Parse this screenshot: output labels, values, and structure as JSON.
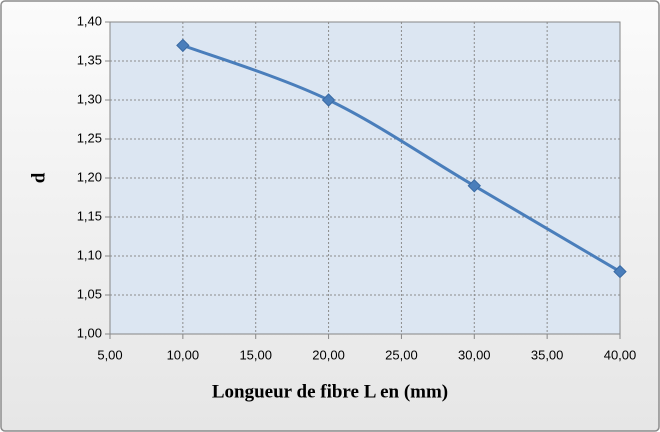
{
  "chart_data": {
    "type": "scatter",
    "smooth": true,
    "marker": "diamond",
    "grid": true,
    "x_label": "Longueur de fibre L en  (mm)",
    "y_label": "d",
    "x": [
      10,
      20,
      30,
      40
    ],
    "series": [
      {
        "color": "#4a7ebb",
        "values": [
          1.37,
          1.3,
          1.19,
          1.08
        ]
      }
    ],
    "xlim": [
      5,
      40
    ],
    "xticks": [
      {
        "value": 5,
        "label": "5,00"
      },
      {
        "value": 10,
        "label": "10,00"
      },
      {
        "value": 15,
        "label": "15,00"
      },
      {
        "value": 20,
        "label": "20,00"
      },
      {
        "value": 25,
        "label": "25,00"
      },
      {
        "value": 30,
        "label": "30,00"
      },
      {
        "value": 35,
        "label": "35,00"
      },
      {
        "value": 40,
        "label": "40,00"
      }
    ],
    "ylim": [
      1.0,
      1.4
    ],
    "yticks": [
      {
        "value": 1.0,
        "label": "1,00"
      },
      {
        "value": 1.05,
        "label": "1,05"
      },
      {
        "value": 1.1,
        "label": "1,10"
      },
      {
        "value": 1.15,
        "label": "1,15"
      },
      {
        "value": 1.2,
        "label": "1,20"
      },
      {
        "value": 1.25,
        "label": "1,25"
      },
      {
        "value": 1.3,
        "label": "1,30"
      },
      {
        "value": 1.35,
        "label": "1,35"
      },
      {
        "value": 1.4,
        "label": "1,40"
      }
    ]
  }
}
